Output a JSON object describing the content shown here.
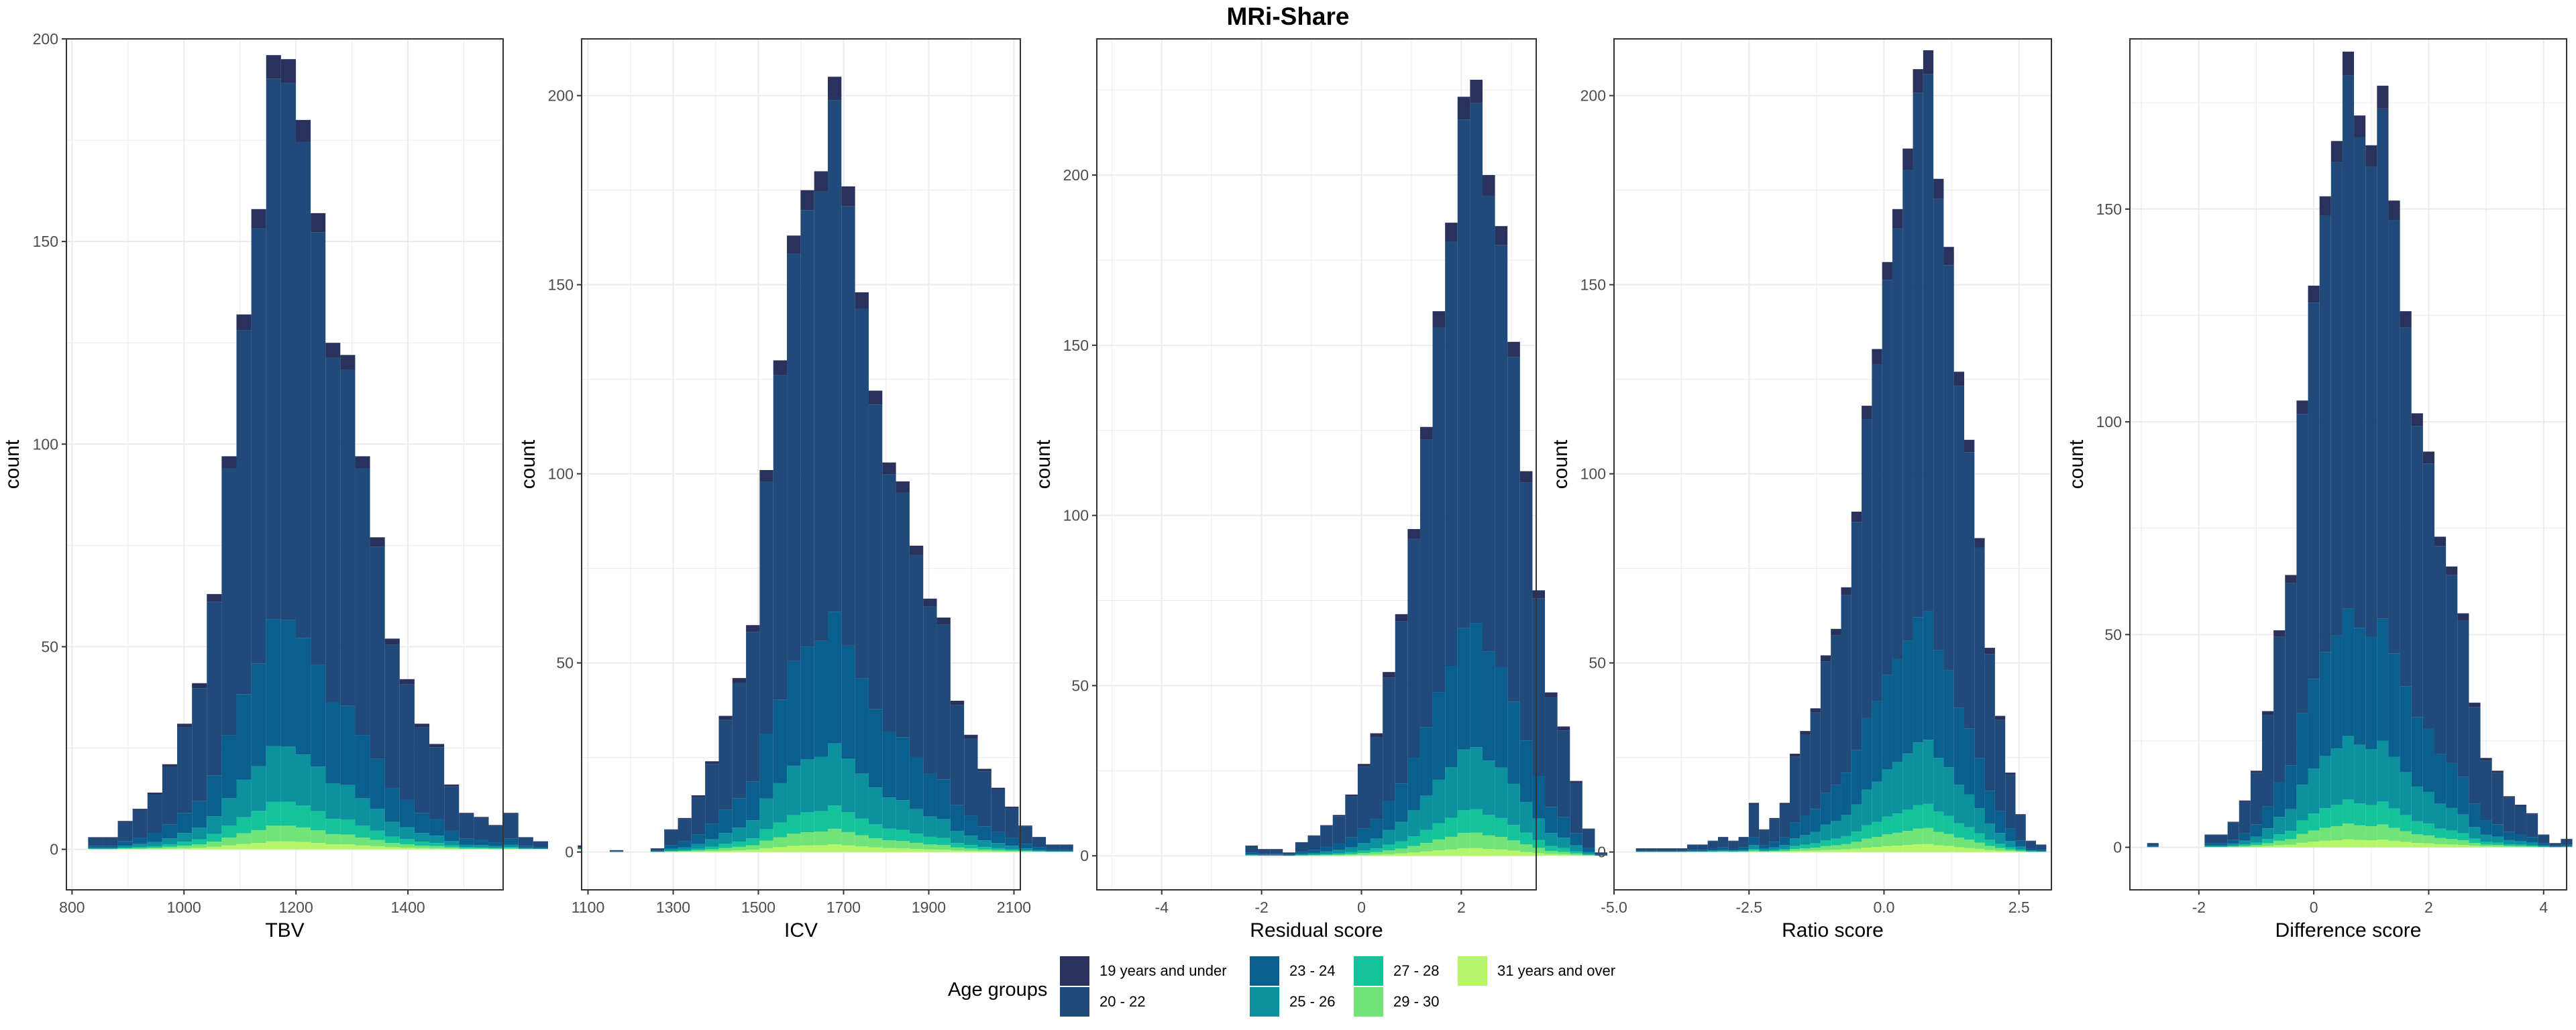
{
  "title": "MRi-Share",
  "colors": {
    "groups": [
      "#28325c",
      "#1f4a7a",
      "#0b5f8e",
      "#0c919e",
      "#14c29c",
      "#72e378",
      "#b4f56a"
    ],
    "grid": "#ebebeb",
    "axis_text": "#4d4d4d",
    "panel_border": "#333333"
  },
  "legend": {
    "title": "Age groups",
    "entries": [
      "19 years and under",
      "20 - 22",
      "23 - 24",
      "25 - 26",
      "27 - 28",
      "29 - 30",
      "31 years and over"
    ]
  },
  "chart_data": [
    {
      "type": "stacked histogram",
      "xlabel": "TBV",
      "ylabel": "count",
      "xlim": [
        790,
        1570
      ],
      "ylim": [
        -10,
        200
      ],
      "xticks": [
        800,
        1000,
        1200,
        1400
      ],
      "yticks": [
        0,
        50,
        100,
        150,
        200
      ],
      "bin_width": 26.5,
      "first_bin_center": 842,
      "totals": [
        3,
        3,
        7,
        10,
        14,
        21,
        31,
        41,
        63,
        97,
        132,
        158,
        196,
        195,
        180,
        157,
        125,
        122,
        97,
        77,
        52,
        42,
        31,
        26,
        16,
        9,
        8,
        6,
        9,
        3,
        2,
        0,
        0,
        1
      ],
      "group_fractions": [
        0.03,
        0.68,
        0.16,
        0.07,
        0.03,
        0.02,
        0.01
      ]
    },
    {
      "type": "stacked histogram",
      "xlabel": "ICV",
      "ylabel": "count",
      "xlim": [
        1085,
        2115
      ],
      "ylim": [
        -10,
        215
      ],
      "xticks": [
        1100,
        1300,
        1500,
        1700,
        1900,
        2100
      ],
      "yticks": [
        0,
        50,
        100,
        150,
        200
      ],
      "bin_width": 32,
      "first_bin_center": 1167,
      "totals": [
        0.5,
        0,
        0,
        1,
        6,
        9,
        15,
        24,
        36,
        46,
        60,
        101,
        130,
        163,
        175,
        180,
        205,
        176,
        148,
        122,
        103,
        98,
        81,
        67,
        62,
        40,
        31,
        22,
        17,
        12,
        7,
        4,
        2,
        2
      ],
      "group_fractions": [
        0.03,
        0.66,
        0.17,
        0.08,
        0.03,
        0.02,
        0.01
      ]
    },
    {
      "type": "stacked histogram",
      "xlabel": "Residual score",
      "ylabel": "count",
      "xlim": [
        -5.3,
        3.5
      ],
      "ylim": [
        -10,
        240
      ],
      "xticks": [
        -4,
        -2,
        0,
        2
      ],
      "yticks": [
        0,
        50,
        100,
        150,
        200
      ],
      "bin_width": 0.25,
      "first_bin_center": -4.95,
      "totals": [
        0,
        0,
        0,
        0,
        0,
        0,
        0,
        0,
        0,
        0,
        0,
        3,
        2,
        2,
        1,
        4,
        6,
        9,
        12,
        18,
        27,
        36,
        54,
        71,
        96,
        126,
        160,
        186,
        223,
        228,
        200,
        185,
        151,
        113,
        78,
        48,
        38,
        22,
        8,
        1
      ],
      "group_fractions": [
        0.03,
        0.67,
        0.16,
        0.08,
        0.03,
        0.02,
        0.01
      ]
    },
    {
      "type": "stacked histogram",
      "xlabel": "Ratio score",
      "ylabel": "count",
      "xlim": [
        -5.0,
        3.1
      ],
      "ylim": [
        -10,
        215
      ],
      "xticks": [
        -5.0,
        -2.5,
        0.0,
        2.5
      ],
      "yticks": [
        0,
        50,
        100,
        150,
        200
      ],
      "bin_width": 0.19,
      "first_bin_center": -4.5,
      "totals": [
        1,
        1,
        1,
        1,
        1,
        2,
        2,
        3,
        4,
        3,
        4,
        13,
        6,
        9,
        13,
        26,
        32,
        38,
        52,
        59,
        70,
        90,
        118,
        133,
        156,
        170,
        186,
        207,
        212,
        178,
        160,
        127,
        109,
        83,
        54,
        36,
        21,
        10,
        3,
        2
      ],
      "group_fractions": [
        0.03,
        0.67,
        0.16,
        0.08,
        0.03,
        0.02,
        0.01
      ]
    },
    {
      "type": "stacked histogram",
      "xlabel": "Difference score",
      "ylabel": "count",
      "xlim": [
        -3.2,
        4.4
      ],
      "ylim": [
        -10,
        190
      ],
      "xticks": [
        -2,
        0,
        2,
        4
      ],
      "yticks": [
        0,
        50,
        100,
        150
      ],
      "bin_width": 0.2,
      "first_bin_center": -3.0,
      "totals": [
        0,
        1,
        0,
        0,
        0,
        0,
        3,
        3,
        6,
        11,
        18,
        32,
        51,
        64,
        105,
        132,
        153,
        166,
        187,
        172,
        165,
        179,
        152,
        126,
        102,
        93,
        73,
        66,
        55,
        34,
        21,
        18,
        12,
        10,
        8,
        3,
        1,
        2,
        0,
        1
      ],
      "group_fractions": [
        0.03,
        0.67,
        0.16,
        0.08,
        0.03,
        0.02,
        0.01
      ]
    }
  ]
}
